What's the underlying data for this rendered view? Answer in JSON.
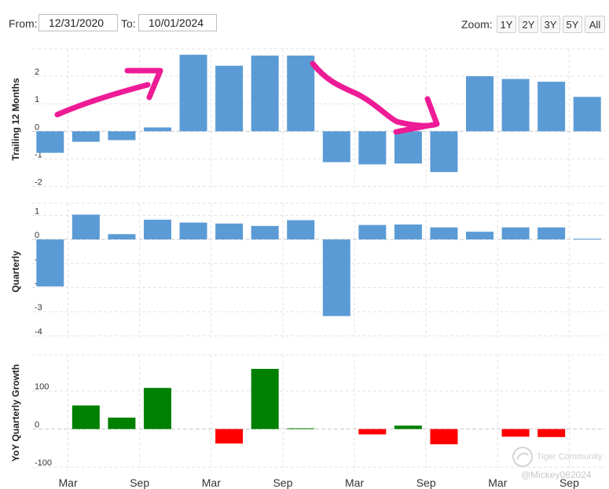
{
  "controls": {
    "from_label": "From:",
    "from_value": "12/31/2020",
    "to_label": "To:",
    "to_value": "10/01/2024",
    "zoom_label": "Zoom:",
    "zoom_options": [
      "1Y",
      "2Y",
      "3Y",
      "5Y",
      "All"
    ]
  },
  "colors": {
    "blue_bar": "#5b9bd5",
    "green_bar": "#008000",
    "red_bar": "#ff0000",
    "grid": "#e3e3e3",
    "zero_line": "#c8c8c8",
    "annotation": "#ee1b96"
  },
  "chart_data": [
    {
      "type": "bar",
      "ylabel": "Trailing 12 Months",
      "ylim": [
        -2.1,
        3.0
      ],
      "yticks": [
        "2",
        "1",
        "0",
        "-1",
        "-2"
      ],
      "ytick_values": [
        2,
        1,
        0,
        -1,
        -2
      ],
      "values": [
        -0.78,
        -0.38,
        -0.32,
        0.14,
        2.78,
        2.38,
        2.75,
        2.75,
        -1.12,
        -1.2,
        -1.17,
        -1.48,
        2.0,
        1.9,
        1.8,
        1.25
      ],
      "color": "blue"
    },
    {
      "type": "bar",
      "ylabel": "Quarterly",
      "ylim": [
        -4.2,
        1.5
      ],
      "yticks": [
        "1",
        "0",
        "-1",
        "-2",
        "-3",
        "-4"
      ],
      "ytick_values": [
        1,
        0,
        -1,
        -2,
        -3,
        -4
      ],
      "values": [
        -1.95,
        1.03,
        0.22,
        0.82,
        0.7,
        0.66,
        0.56,
        0.8,
        -3.18,
        0.6,
        0.62,
        0.5,
        0.32,
        0.5,
        0.5,
        0.03
      ],
      "color": "blue"
    },
    {
      "type": "bar",
      "ylabel": "YoY Quarterly Growth",
      "ylim": [
        -110,
        195
      ],
      "yticks": [
        "100",
        "0",
        "-100"
      ],
      "ytick_values": [
        100,
        0,
        -100
      ],
      "values": [
        null,
        62,
        30,
        108,
        null,
        -38,
        158,
        2,
        null,
        -14,
        9,
        -40,
        null,
        -20,
        -21,
        null
      ],
      "color": "sign"
    }
  ],
  "x_axis": {
    "tick_labels": [
      "Mar",
      "Sep",
      "Mar",
      "Sep",
      "Mar",
      "Sep",
      "Mar",
      "Sep"
    ],
    "tick_indices": [
      1,
      3,
      5,
      7,
      9,
      11,
      13,
      15
    ]
  },
  "watermark": {
    "brand": "Tiger Community",
    "user": "@Mickey082024"
  }
}
